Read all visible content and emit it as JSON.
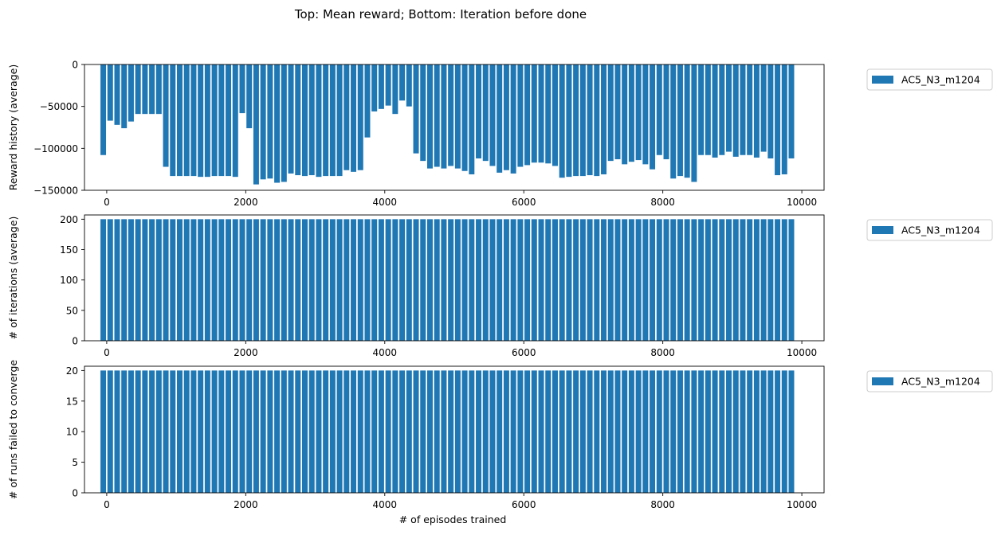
{
  "figure": {
    "suptitle": "Top: Mean reward; Bottom: Iteration before done"
  },
  "colors": {
    "bar": "#1f77b4",
    "axes": "#000000",
    "legend_border": "#cccccc"
  },
  "chart_data": [
    {
      "type": "bar",
      "ylabel": "Reward history (average)",
      "xlabel": "",
      "xlim": [
        -320,
        10320
      ],
      "ylim": [
        -150000,
        0
      ],
      "xticks": [
        0,
        2000,
        4000,
        6000,
        8000,
        10000
      ],
      "yticks": [
        0,
        -50000,
        -100000,
        -150000
      ],
      "grid": false,
      "legend": {
        "entries": [
          "AC5_N3_m1204"
        ],
        "placement": "outside-right-top"
      },
      "series": [
        {
          "name": "AC5_N3_m1204",
          "bar_width": 80,
          "x": [
            -50,
            50,
            150,
            250,
            350,
            450,
            550,
            650,
            750,
            850,
            950,
            1050,
            1150,
            1250,
            1350,
            1450,
            1550,
            1650,
            1750,
            1850,
            1950,
            2050,
            2150,
            2250,
            2350,
            2450,
            2550,
            2650,
            2750,
            2850,
            2950,
            3050,
            3150,
            3250,
            3350,
            3450,
            3550,
            3650,
            3750,
            3850,
            3950,
            4050,
            4150,
            4250,
            4350,
            4450,
            4550,
            4650,
            4750,
            4850,
            4950,
            5050,
            5150,
            5250,
            5350,
            5450,
            5550,
            5650,
            5750,
            5850,
            5950,
            6050,
            6150,
            6250,
            6350,
            6450,
            6550,
            6650,
            6750,
            6850,
            6950,
            7050,
            7150,
            7250,
            7350,
            7450,
            7550,
            7650,
            7750,
            7850,
            7950,
            8050,
            8150,
            8250,
            8350,
            8450,
            8550,
            8650,
            8750,
            8850,
            8950,
            9050,
            9150,
            9250,
            9350,
            9450,
            9550,
            9650,
            9750,
            9850
          ],
          "values": [
            -108000,
            -67000,
            -72000,
            -76000,
            -68000,
            -59000,
            -59000,
            -59000,
            -59000,
            -122000,
            -133000,
            -133000,
            -133000,
            -133000,
            -134000,
            -134000,
            -133000,
            -133000,
            -133000,
            -134000,
            -58000,
            -76000,
            -143000,
            -137000,
            -136000,
            -141000,
            -140000,
            -130000,
            -132000,
            -133000,
            -132000,
            -134000,
            -133000,
            -133000,
            -133000,
            -126000,
            -128000,
            -126000,
            -87000,
            -56000,
            -53000,
            -49000,
            -59000,
            -43000,
            -50000,
            -106000,
            -115000,
            -124000,
            -122000,
            -124000,
            -121000,
            -124000,
            -127000,
            -131000,
            -112000,
            -115000,
            -121000,
            -129000,
            -126000,
            -130000,
            -122000,
            -120000,
            -117000,
            -117000,
            -118000,
            -121000,
            -135000,
            -134000,
            -133000,
            -133000,
            -132000,
            -133000,
            -131000,
            -115000,
            -113000,
            -119000,
            -116000,
            -114000,
            -119000,
            -125000,
            -108000,
            -113000,
            -136000,
            -133000,
            -135000,
            -140000,
            -108000,
            -108000,
            -111000,
            -108000,
            -104000,
            -110000,
            -108000,
            -108000,
            -111000,
            -104000,
            -112000,
            -132000,
            -131000,
            -112000
          ]
        }
      ]
    },
    {
      "type": "bar",
      "ylabel": "# of iterations (average)",
      "xlabel": "",
      "xlim": [
        -320,
        10320
      ],
      "ylim": [
        0,
        207
      ],
      "xticks": [
        0,
        2000,
        4000,
        6000,
        8000,
        10000
      ],
      "yticks": [
        0,
        50,
        100,
        150,
        200
      ],
      "grid": false,
      "legend": {
        "entries": [
          "AC5_N3_m1204"
        ],
        "placement": "outside-right-top"
      },
      "series": [
        {
          "name": "AC5_N3_m1204",
          "bar_width": 80,
          "x_from": -50,
          "x_step": 100,
          "count": 100,
          "constant_value": 200
        }
      ]
    },
    {
      "type": "bar",
      "ylabel": "# of runs failed to converge",
      "xlabel": "# of episodes trained",
      "xlim": [
        -320,
        10320
      ],
      "ylim": [
        0,
        20.7
      ],
      "xticks": [
        0,
        2000,
        4000,
        6000,
        8000,
        10000
      ],
      "yticks": [
        0,
        5,
        10,
        15,
        20
      ],
      "grid": false,
      "legend": {
        "entries": [
          "AC5_N3_m1204"
        ],
        "placement": "outside-right-top"
      },
      "series": [
        {
          "name": "AC5_N3_m1204",
          "bar_width": 80,
          "x_from": -50,
          "x_step": 100,
          "count": 100,
          "constant_value": 20
        }
      ]
    }
  ]
}
